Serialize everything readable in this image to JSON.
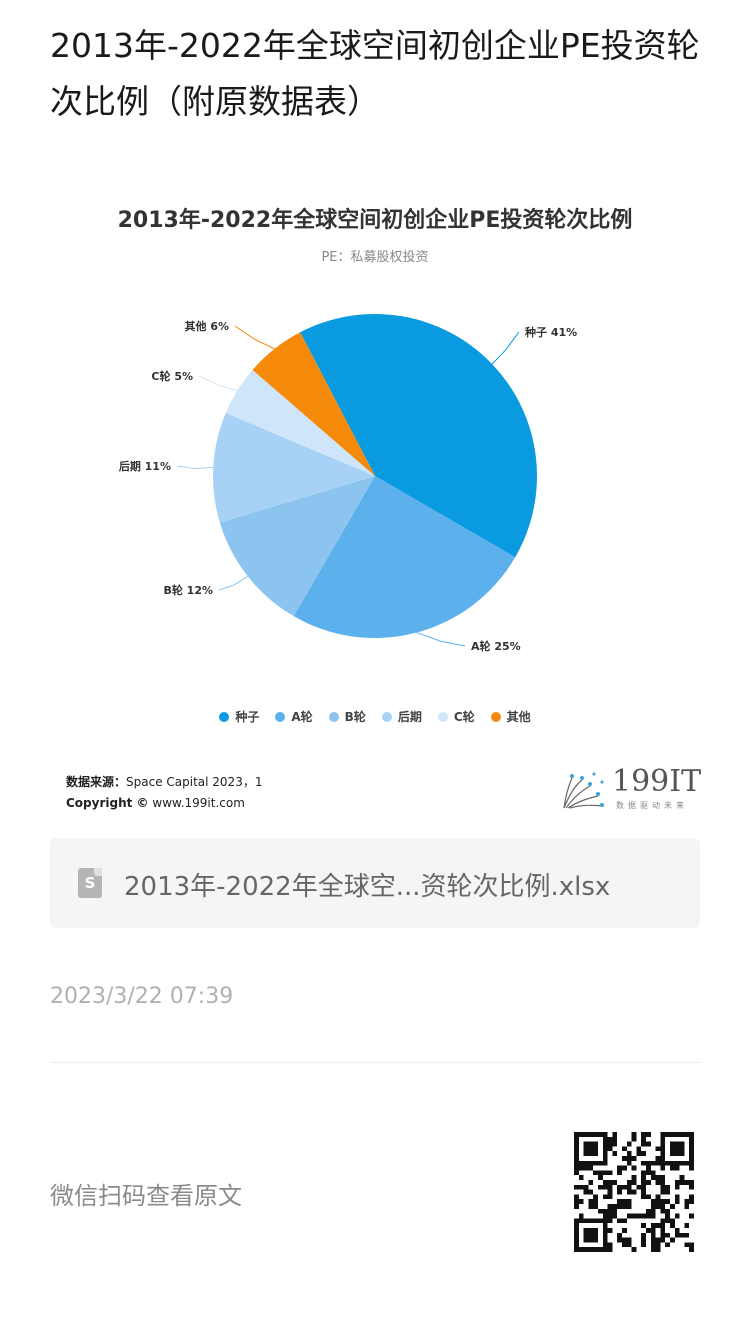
{
  "article": {
    "title": "2013年-2022年全球空间初创企业PE投资轮次比例（附原数据表）",
    "timestamp": "2023/3/22 07:39",
    "scan_text": "微信扫码查看原文"
  },
  "chart_data": {
    "type": "pie",
    "title": "2013年-2022年全球空间初创企业PE投资轮次比例",
    "subtitle": "PE：私募股权投资",
    "legend_position": "bottom",
    "slices": [
      {
        "name": "种子",
        "label": "种子 41%",
        "value": 41,
        "color": "#0a9ae0"
      },
      {
        "name": "A轮",
        "label": "A轮 25%",
        "value": 25,
        "color": "#5cb0ec"
      },
      {
        "name": "B轮",
        "label": "B轮 12%",
        "value": 12,
        "color": "#8cc4f0"
      },
      {
        "name": "后期",
        "label": "后期 11%",
        "value": 11,
        "color": "#a8d2f5"
      },
      {
        "name": "C轮",
        "label": "C轮 5%",
        "value": 5,
        "color": "#cfe6fa"
      },
      {
        "name": "其他",
        "label": "其他 6%",
        "value": 6,
        "color": "#f58a0a"
      }
    ]
  },
  "source": {
    "label": "数据来源：",
    "text": "Space Capital 2023，1",
    "copyright_label": "Copyright ©",
    "copyright_text": "www.199it.com"
  },
  "brand": {
    "name": "199IT",
    "tagline": "数据驱动未来",
    "icon": "dandelion-logo-icon"
  },
  "attachment": {
    "icon": "spreadsheet-file-icon",
    "icon_letter": "S",
    "file_name": "2013年-2022年全球空...资轮次比例.xlsx"
  },
  "qr": {
    "icon": "qr-code-icon"
  }
}
